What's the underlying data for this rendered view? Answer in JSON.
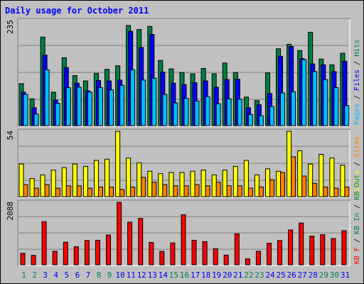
{
  "chart_data": {
    "type": "bar",
    "title": "Daily usage for October 2011",
    "categories": [
      "1",
      "2",
      "3",
      "4",
      "5",
      "6",
      "7",
      "8",
      "9",
      "10",
      "11",
      "12",
      "13",
      "14",
      "15",
      "16",
      "17",
      "18",
      "19",
      "20",
      "21",
      "22",
      "23",
      "24",
      "25",
      "26",
      "27",
      "28",
      "29",
      "30",
      "31"
    ],
    "weekend_days": [
      "1",
      "2",
      "8",
      "9",
      "15",
      "16",
      "22",
      "23",
      "29",
      "30"
    ],
    "panels": [
      {
        "id": "hits",
        "ymax_label": "235",
        "ylim": [
          0,
          235
        ],
        "legend": [
          "Pages",
          "Files",
          "Hits"
        ],
        "legend_separator": "/",
        "series": [
          {
            "name": "Hits",
            "color": "#008040",
            "values": [
              94,
              60,
              198,
              75,
              152,
              112,
              100,
              117,
              126,
              134,
              224,
              215,
              222,
              146,
              127,
              119,
              116,
              128,
              116,
              140,
              119,
              64,
              56,
              118,
              172,
              182,
              168,
              209,
              149,
              136,
              162
            ]
          },
          {
            "name": "Files",
            "color": "#0000ff",
            "values": [
              75,
              40,
              158,
              57,
              130,
              95,
              78,
              101,
              100,
              102,
              211,
              175,
              204,
              120,
              95,
              92,
              96,
              100,
              86,
              103,
              104,
              40,
              47,
              72,
              155,
              177,
              150,
              138,
              136,
              121,
              144
            ]
          },
          {
            "name": "Pages",
            "color": "#00c0ff",
            "values": [
              70,
              26,
              125,
              50,
              85,
              86,
              75,
              85,
              80,
              90,
              125,
              102,
              106,
              70,
              51,
              61,
              55,
              65,
              49,
              60,
              59,
              25,
              22,
              43,
              73,
              76,
              148,
              121,
              103,
              85,
              45
            ]
          }
        ]
      },
      {
        "id": "visits",
        "ymax_label": "54",
        "ylim": [
          0,
          54
        ],
        "legend": [
          "Visits",
          "Sites"
        ],
        "legend_separator": "/",
        "series": [
          {
            "name": "Visits",
            "color": "#ffff00",
            "values": [
              27,
              15,
              18,
              22,
              24,
              27,
              25,
              30,
              31,
              54,
              32,
              28,
              21,
              19,
              20,
              20,
              21,
              22,
              18,
              22,
              25,
              30,
              18,
              23,
              21,
              54,
              38,
              27,
              35,
              32,
              26
            ]
          },
          {
            "name": "Sites",
            "color": "#ff8000",
            "values": [
              10,
              7,
              10,
              7,
              9,
              9,
              7,
              8,
              8,
              6,
              8,
              16,
              12,
              10,
              9,
              9,
              10,
              9,
              12,
              9,
              9,
              7,
              8,
              14,
              20,
              33,
              17,
              11,
              8,
              7,
              8
            ]
          }
        ]
      },
      {
        "id": "kbytes",
        "ymax_label": "2088",
        "ylim": [
          0,
          2088
        ],
        "legend": [
          "KBytes",
          "KB In",
          "KB Out"
        ],
        "legend_display": [
          "KB F",
          "KB In",
          "KB Out"
        ],
        "legend_separator": "/",
        "series": [
          {
            "name": "KBytes",
            "color": "#ff0000",
            "values": [
              386,
              316,
              1442,
              453,
              756,
              605,
              816,
              820,
              1000,
              2088,
              1426,
              1552,
              750,
              450,
              732,
              1676,
              820,
              775,
              542,
              325,
              1036,
              201,
              453,
              724,
              815,
              1165,
              1398,
              962,
              1006,
              881,
              1142
            ]
          }
        ]
      }
    ],
    "colors": {
      "title": "#0000ff",
      "axis_label": "#000000",
      "weekday_label": "#0000ff",
      "weekend_label": "#00805c",
      "background": "#c0c0c0",
      "gridline": "#7f7f7f",
      "bar_outline": "#000000"
    }
  }
}
